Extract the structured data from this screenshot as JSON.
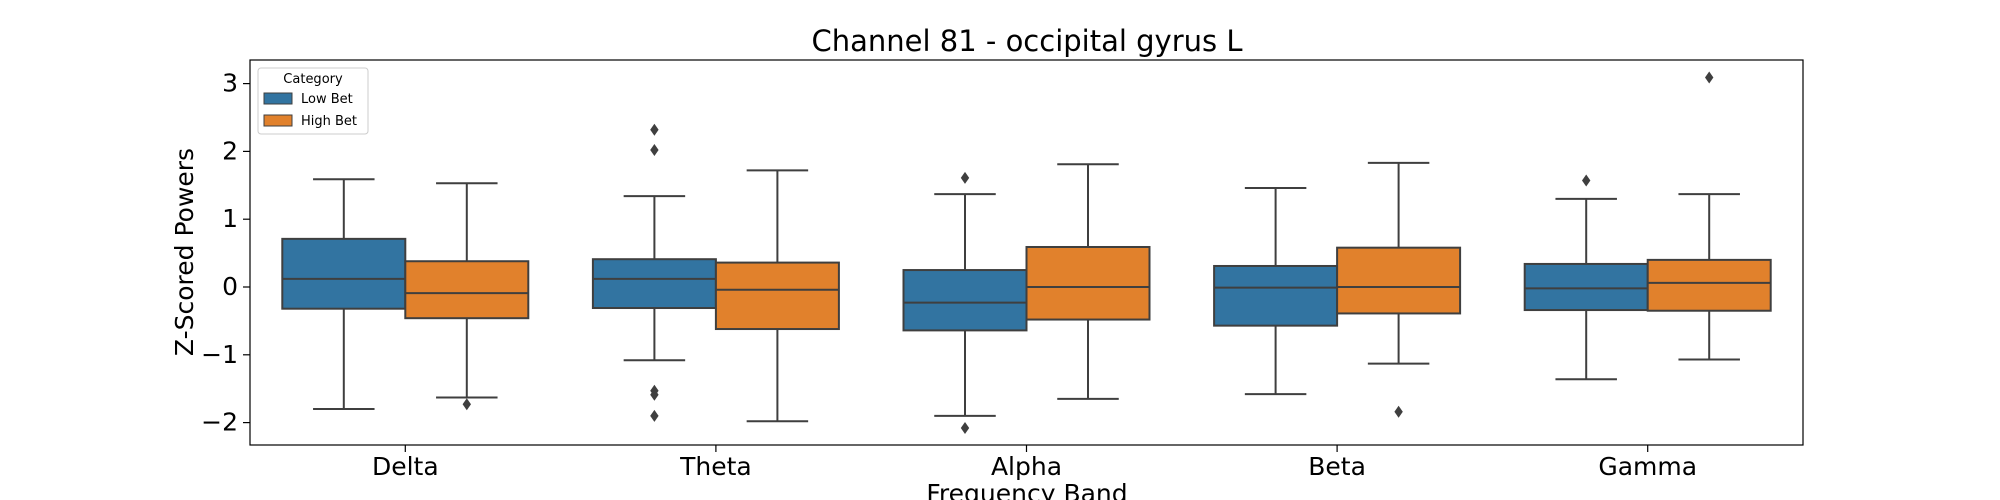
{
  "chart_data": {
    "type": "boxplot",
    "title": "Channel 81 - occipital gyrus L",
    "xlabel": "Frequency Band",
    "ylabel": "Z-Scored Powers",
    "ylim": [
      -2.35,
      3.35
    ],
    "yticks": [
      -2,
      -1,
      0,
      1,
      2,
      3
    ],
    "ytick_labels": [
      "−2",
      "−1",
      "0",
      "1",
      "2",
      "3"
    ],
    "categories": [
      "Delta",
      "Theta",
      "Alpha",
      "Beta",
      "Gamma"
    ],
    "grid": false,
    "legend": {
      "title": "Category",
      "position": "top-left"
    },
    "series": [
      {
        "name": "Low Bet",
        "color": "#3274a1",
        "boxes": [
          {
            "whislo": -1.8,
            "q1": -0.32,
            "med": 0.12,
            "q3": 0.71,
            "whishi": 1.59,
            "fliers": []
          },
          {
            "whislo": -1.08,
            "q1": -0.31,
            "med": 0.12,
            "q3": 0.41,
            "whishi": 1.34,
            "fliers": [
              2.32,
              2.02,
              -1.53,
              -1.59,
              -1.9
            ]
          },
          {
            "whislo": -1.9,
            "q1": -0.64,
            "med": -0.23,
            "q3": 0.25,
            "whishi": 1.37,
            "fliers": [
              1.61,
              -2.08
            ]
          },
          {
            "whislo": -1.58,
            "q1": -0.57,
            "med": -0.01,
            "q3": 0.31,
            "whishi": 1.46,
            "fliers": []
          },
          {
            "whislo": -1.36,
            "q1": -0.34,
            "med": -0.02,
            "q3": 0.34,
            "whishi": 1.3,
            "fliers": [
              1.57
            ]
          }
        ]
      },
      {
        "name": "High Bet",
        "color": "#e1812c",
        "boxes": [
          {
            "whislo": -1.63,
            "q1": -0.46,
            "med": -0.09,
            "q3": 0.38,
            "whishi": 1.53,
            "fliers": [
              -1.73
            ]
          },
          {
            "whislo": -1.98,
            "q1": -0.62,
            "med": -0.04,
            "q3": 0.36,
            "whishi": 1.72,
            "fliers": []
          },
          {
            "whislo": -1.65,
            "q1": -0.48,
            "med": 0.0,
            "q3": 0.59,
            "whishi": 1.81,
            "fliers": []
          },
          {
            "whislo": -1.13,
            "q1": -0.39,
            "med": 0.0,
            "q3": 0.58,
            "whishi": 1.83,
            "fliers": [
              -1.84
            ]
          },
          {
            "whislo": -1.07,
            "q1": -0.35,
            "med": 0.06,
            "q3": 0.4,
            "whishi": 1.37,
            "fliers": [
              3.09
            ]
          }
        ]
      }
    ]
  }
}
